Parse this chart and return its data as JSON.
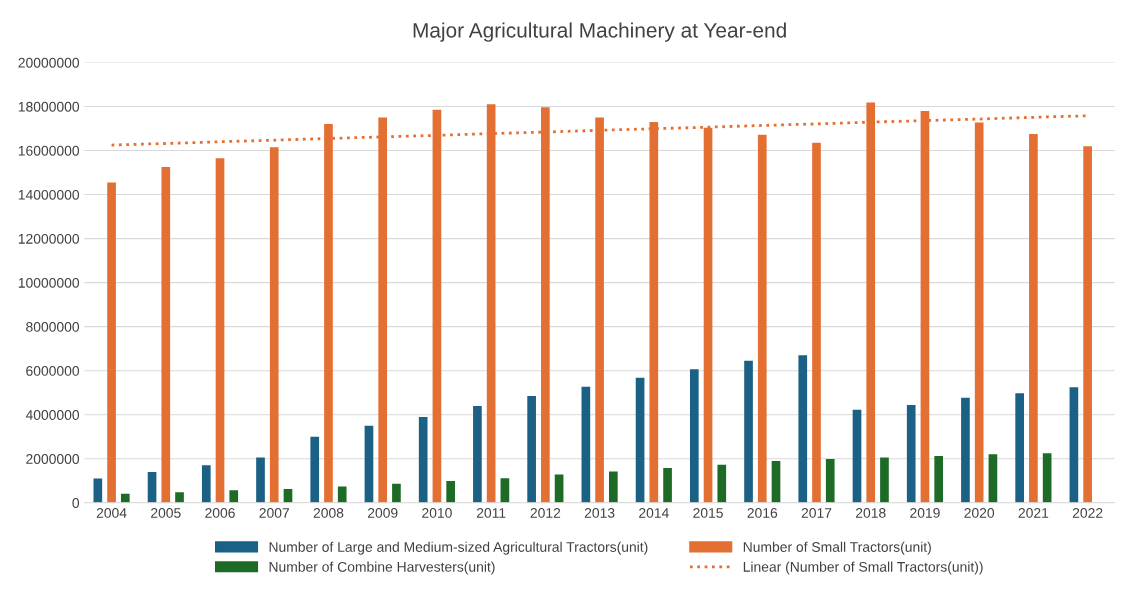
{
  "chart_data": {
    "type": "bar",
    "title": "Major Agricultural Machinery at Year-end",
    "categories": [
      "2004",
      "2005",
      "2006",
      "2007",
      "2008",
      "2009",
      "2010",
      "2011",
      "2012",
      "2013",
      "2014",
      "2015",
      "2016",
      "2017",
      "2018",
      "2019",
      "2020",
      "2021",
      "2022"
    ],
    "series": [
      {
        "name": "Number of Large and Medium-sized Agricultural Tractors(unit)",
        "color": "#1a6185",
        "values": [
          1100000,
          1400000,
          1700000,
          2060000,
          3000000,
          3500000,
          3900000,
          4400000,
          4850000,
          5270000,
          5680000,
          6070000,
          6450000,
          6700000,
          4220000,
          4440000,
          4770000,
          4980000,
          5250000
        ]
      },
      {
        "name": "Number of Small Tractors(unit)",
        "color": "#e46f33",
        "values": [
          14550000,
          15250000,
          15650000,
          16150000,
          17200000,
          17500000,
          17850000,
          18100000,
          17970000,
          17500000,
          17300000,
          17030000,
          16720000,
          16350000,
          18180000,
          17800000,
          17270000,
          16750000,
          16200000
        ]
      },
      {
        "name": "Number of Combine Harvesters(unit)",
        "color": "#1d6b26",
        "values": [
          410000,
          480000,
          570000,
          630000,
          740000,
          860000,
          990000,
          1110000,
          1280000,
          1420000,
          1580000,
          1730000,
          1900000,
          1990000,
          2060000,
          2130000,
          2200000,
          2250000,
          null
        ]
      },
      {
        "name": "Linear (Number of Small Tractors(unit))",
        "type": "line",
        "line_style": "dotted",
        "color": "#e46f33",
        "values": [
          16250000,
          16320000,
          16400000,
          16470000,
          16550000,
          16620000,
          16690000,
          16770000,
          16840000,
          16920000,
          16990000,
          17060000,
          17140000,
          17210000,
          17290000,
          17360000,
          17430000,
          17510000,
          17580000
        ]
      }
    ],
    "ylim": [
      0,
      20000000
    ],
    "yticks": [
      0,
      2000000,
      4000000,
      6000000,
      8000000,
      10000000,
      12000000,
      14000000,
      16000000,
      18000000,
      20000000
    ],
    "grid": "y",
    "legend": "bottom"
  }
}
